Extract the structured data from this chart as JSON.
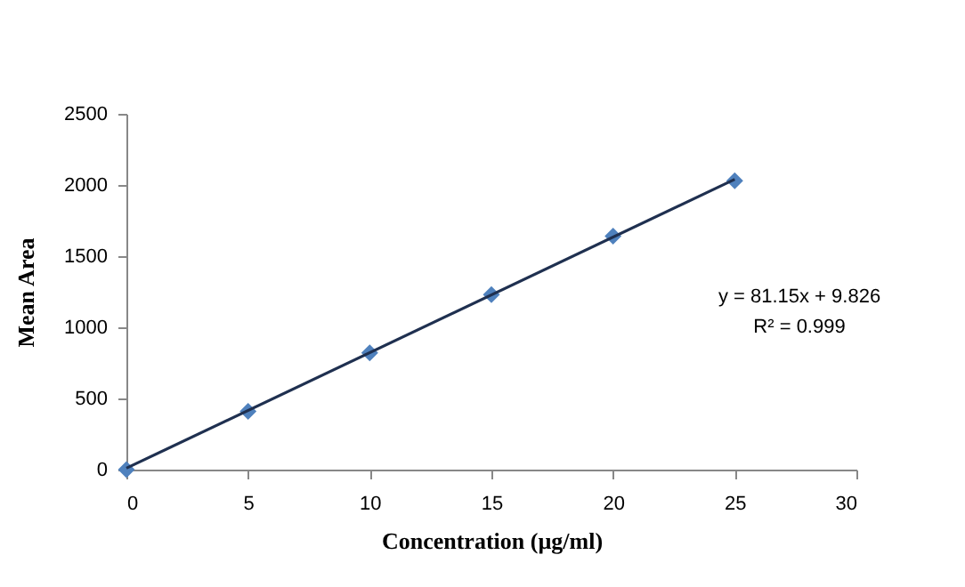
{
  "chart_data": {
    "type": "scatter",
    "xlabel": "Concentration (µg/ml)",
    "ylabel": "Mean Area",
    "xlim": [
      0,
      30
    ],
    "xticks": [
      0,
      5,
      10,
      15,
      20,
      25,
      30
    ],
    "ylim": [
      0,
      2500
    ],
    "yticks": [
      0,
      500,
      1000,
      1500,
      2000,
      2500
    ],
    "grid": false,
    "marker": "diamond",
    "series": [
      {
        "color": "#4f81bd",
        "x": [
          0,
          5,
          10,
          15,
          20,
          25
        ],
        "values": [
          0,
          410,
          820,
          1230,
          1640,
          2030
        ]
      },
      {
        "type": "line",
        "color": "#1f3050",
        "line_style": "solid",
        "marker": "none",
        "x": [
          0,
          25
        ],
        "values": [
          10,
          2040
        ]
      }
    ],
    "annotations": [
      "y = 81.15x + 9.826",
      "R² = 0.999"
    ]
  }
}
